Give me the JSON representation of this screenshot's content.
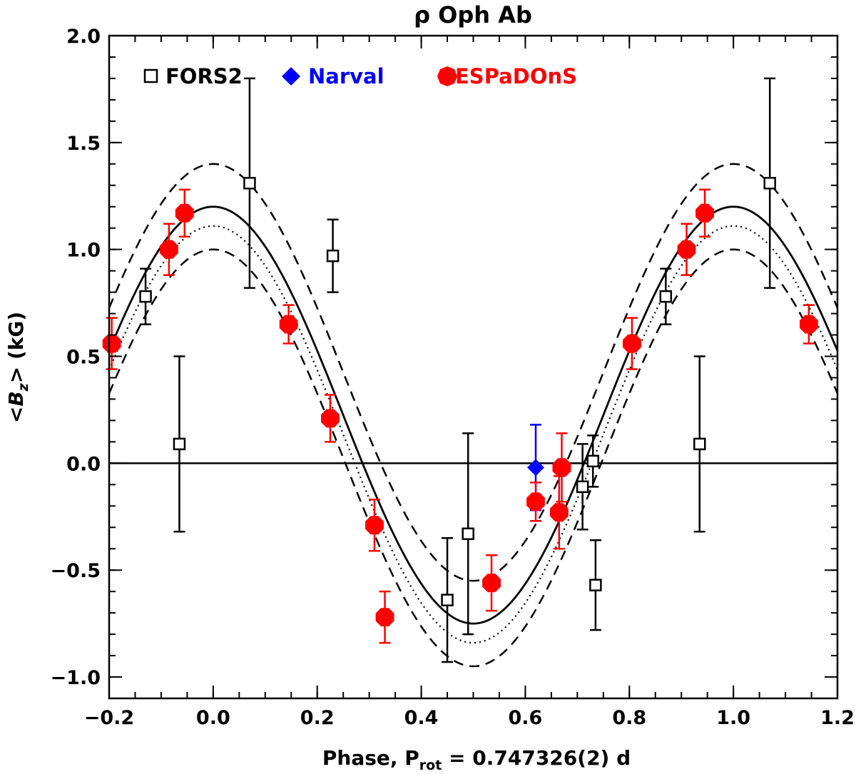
{
  "chart_data": {
    "type": "scatter",
    "title": "ρ Oph Ab",
    "xlabel_prefix": "Phase, P",
    "xlabel_sub": "rot",
    "xlabel_suffix": " = 0.747326(2) d",
    "ylabel_prefix": "<B",
    "ylabel_sub": "z",
    "ylabel_suffix": "> (kG)",
    "xlim": [
      -0.2,
      1.2
    ],
    "ylim": [
      -1.1,
      2.0
    ],
    "x_ticks": [
      -0.2,
      0.0,
      0.2,
      0.4,
      0.6,
      0.8,
      1.0,
      1.2
    ],
    "x_tick_labels": [
      "−0.2",
      "0.0",
      "0.2",
      "0.4",
      "0.6",
      "0.8",
      "1.0",
      "1.2"
    ],
    "y_ticks": [
      -1.0,
      -0.5,
      0.0,
      0.5,
      1.0,
      1.5,
      2.0
    ],
    "y_tick_labels": [
      "−1.0",
      "−0.5",
      "0.0",
      "0.5",
      "1.0",
      "1.5",
      "2.0"
    ],
    "zero_line": 0.0,
    "fit": {
      "mean": 0.225,
      "amplitude": 0.975,
      "peak_phase": 0.0,
      "band_offset": 0.2,
      "dotted_offset": -0.09
    },
    "legend": [
      {
        "label": "FORS2",
        "marker": "open-square",
        "color": "#000000"
      },
      {
        "label": "Narval",
        "marker": "diamond",
        "color": "#0000ff"
      },
      {
        "label": "ESPaDOnS",
        "marker": "filled-circle",
        "color": "#ff0000"
      }
    ],
    "series": [
      {
        "name": "FORS2",
        "color": "#000000",
        "points": [
          {
            "x": -0.13,
            "y": 0.78,
            "err": 0.13
          },
          {
            "x": -0.065,
            "y": 0.09,
            "err": 0.41
          },
          {
            "x": 0.07,
            "y": 1.31,
            "err": 0.49
          },
          {
            "x": 0.23,
            "y": 0.97,
            "err": 0.17
          },
          {
            "x": 0.45,
            "y": -0.64,
            "err": 0.29
          },
          {
            "x": 0.49,
            "y": -0.33,
            "err": 0.47
          },
          {
            "x": 0.71,
            "y": -0.11,
            "err": 0.2
          },
          {
            "x": 0.73,
            "y": 0.01,
            "err": 0.12
          },
          {
            "x": 0.735,
            "y": -0.57,
            "err": 0.21
          },
          {
            "x": 0.87,
            "y": 0.78,
            "err": 0.13
          },
          {
            "x": 0.935,
            "y": 0.09,
            "err": 0.41
          },
          {
            "x": 1.07,
            "y": 1.31,
            "err": 0.49
          }
        ]
      },
      {
        "name": "Narval",
        "color": "#0000ff",
        "points": [
          {
            "x": 0.62,
            "y": -0.02,
            "err": 0.2
          }
        ]
      },
      {
        "name": "ESPaDOnS",
        "color": "#ff0000",
        "points": [
          {
            "x": -0.195,
            "y": 0.56,
            "err": 0.12
          },
          {
            "x": -0.085,
            "y": 1.0,
            "err": 0.12
          },
          {
            "x": -0.055,
            "y": 1.17,
            "err": 0.11
          },
          {
            "x": 0.145,
            "y": 0.65,
            "err": 0.09
          },
          {
            "x": 0.225,
            "y": 0.21,
            "err": 0.11
          },
          {
            "x": 0.31,
            "y": -0.29,
            "err": 0.12
          },
          {
            "x": 0.33,
            "y": -0.72,
            "err": 0.12
          },
          {
            "x": 0.535,
            "y": -0.56,
            "err": 0.13
          },
          {
            "x": 0.62,
            "y": -0.18,
            "err": 0.09
          },
          {
            "x": 0.665,
            "y": -0.23,
            "err": 0.17
          },
          {
            "x": 0.67,
            "y": -0.02,
            "err": 0.16
          },
          {
            "x": 0.805,
            "y": 0.56,
            "err": 0.12
          },
          {
            "x": 0.91,
            "y": 1.0,
            "err": 0.12
          },
          {
            "x": 0.945,
            "y": 1.17,
            "err": 0.11
          },
          {
            "x": 1.145,
            "y": 0.65,
            "err": 0.09
          }
        ]
      }
    ]
  }
}
